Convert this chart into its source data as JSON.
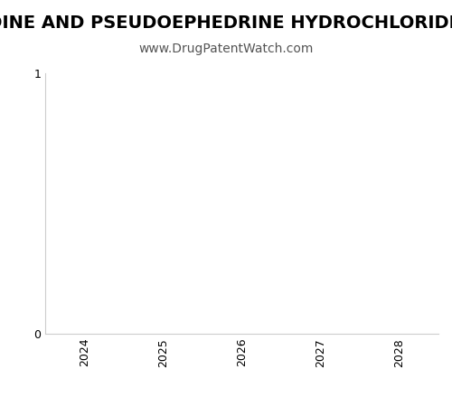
{
  "full_title": "Patent Expirations for TRIPROLIDINE AND PSEUDOEPHEDRINE HYDROCHLORIDE",
  "subtitle": "www.DrugPatentWatch.com",
  "xlim": [
    2023.5,
    2028.5
  ],
  "ylim": [
    0,
    1
  ],
  "xticks": [
    2024,
    2025,
    2026,
    2027,
    2028
  ],
  "yticks": [
    0,
    1
  ],
  "background_color": "#ffffff",
  "title_fontsize": 14,
  "subtitle_fontsize": 10,
  "tick_fontsize": 9,
  "title_fontweight": "bold",
  "title_color": "#000000",
  "subtitle_color": "#555555",
  "spine_color": "#cccccc"
}
